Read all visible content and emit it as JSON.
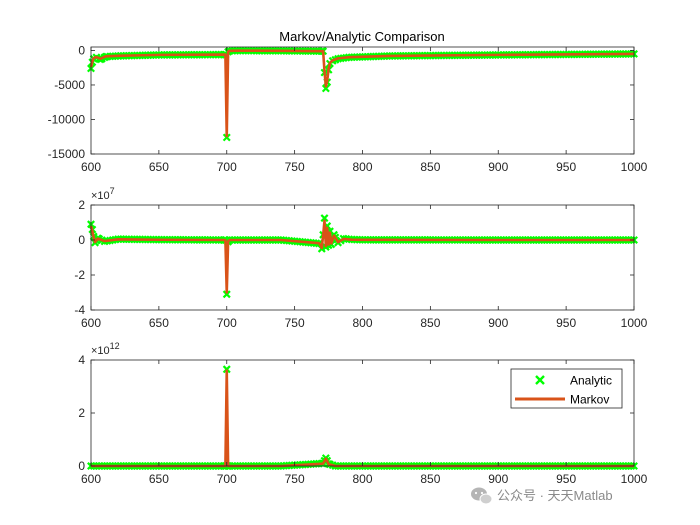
{
  "chart_data": [
    {
      "type": "line",
      "title": "Markov/Analytic Comparison",
      "xlabel": "",
      "ylabel": "",
      "xlim": [
        600,
        1000
      ],
      "ylim": [
        -15000,
        500
      ],
      "xticks": [
        "600",
        "650",
        "700",
        "750",
        "800",
        "850",
        "900",
        "950",
        "1000"
      ],
      "yticks": [
        "0",
        "-5000",
        "-10000",
        "-15000"
      ],
      "ytick_values": [
        0,
        -5000,
        -10000,
        -15000
      ],
      "y_exponent_label": "",
      "series": [
        {
          "name": "Analytic",
          "style": "markers",
          "color": "#00ff00",
          "x": [
            600,
            601,
            602,
            604,
            607,
            611,
            620,
            650,
            699,
            700,
            701,
            702,
            710,
            740,
            771,
            772,
            773,
            774,
            775,
            776,
            778,
            782,
            790,
            820,
            900,
            1000
          ],
          "values": [
            -2600,
            -1700,
            -1200,
            -1000,
            -1300,
            -900,
            -800,
            -650,
            -600,
            -12600,
            -200,
            -50,
            -30,
            -50,
            -100,
            -3200,
            -5500,
            -4600,
            -2800,
            -1900,
            -1500,
            -1200,
            -1000,
            -800,
            -650,
            -500
          ]
        },
        {
          "name": "Markov",
          "style": "line",
          "color": "#d95319",
          "x": [
            600,
            601,
            602,
            604,
            607,
            611,
            620,
            650,
            699,
            700,
            701,
            702,
            710,
            740,
            771,
            772,
            773,
            774,
            775,
            776,
            778,
            782,
            790,
            820,
            900,
            1000
          ],
          "values": [
            -2400,
            -1600,
            -1100,
            -950,
            -1200,
            -850,
            -780,
            -640,
            -600,
            -12400,
            -200,
            -50,
            -30,
            -50,
            -100,
            -3000,
            -5200,
            -4400,
            -2700,
            -1800,
            -1450,
            -1150,
            -980,
            -790,
            -640,
            -500
          ]
        }
      ]
    },
    {
      "type": "line",
      "title": "",
      "xlabel": "",
      "ylabel": "",
      "xlim": [
        600,
        1000
      ],
      "ylim": [
        -40000000,
        20000000
      ],
      "xticks": [
        "600",
        "650",
        "700",
        "750",
        "800",
        "850",
        "900",
        "950",
        "1000"
      ],
      "yticks": [
        "2",
        "0",
        "-2",
        "-4"
      ],
      "ytick_values": [
        20000000,
        0,
        -20000000,
        -40000000
      ],
      "y_exponent_label": "×10",
      "y_exponent_power": "7",
      "series": [
        {
          "name": "Analytic",
          "style": "markers",
          "color": "#00ff00",
          "x": [
            600,
            601,
            602,
            603,
            605,
            610,
            620,
            650,
            699,
            700,
            701,
            702,
            740,
            768,
            770,
            771,
            772,
            773,
            774,
            775,
            776,
            777,
            779,
            782,
            786,
            792,
            800,
            900,
            1000
          ],
          "values": [
            9000000,
            6000000,
            2000000,
            -1500000,
            1000000,
            -800000,
            500000,
            200000,
            0,
            -31000000,
            -1000000,
            0,
            0,
            -2000000,
            -5000000,
            3000000,
            12500000,
            -4000000,
            8000000,
            -3000000,
            5000000,
            -2500000,
            3000000,
            -1500000,
            800000,
            300000,
            100000,
            0,
            0
          ]
        },
        {
          "name": "Markov",
          "style": "line",
          "color": "#d95319",
          "x": [
            600,
            601,
            602,
            603,
            605,
            610,
            620,
            650,
            699,
            700,
            701,
            702,
            740,
            768,
            770,
            771,
            772,
            773,
            774,
            775,
            776,
            777,
            779,
            782,
            786,
            792,
            800,
            900,
            1000
          ],
          "values": [
            8000000,
            5000000,
            1500000,
            -1200000,
            800000,
            -600000,
            400000,
            150000,
            0,
            -30000000,
            -800000,
            0,
            0,
            -1800000,
            -4500000,
            2500000,
            11000000,
            -3500000,
            7000000,
            -2600000,
            4200000,
            -2000000,
            2500000,
            -1200000,
            600000,
            200000,
            100000,
            0,
            0
          ]
        }
      ]
    },
    {
      "type": "line",
      "title": "",
      "xlabel": "",
      "ylabel": "",
      "xlim": [
        600,
        1000
      ],
      "ylim": [
        0,
        4000000000000
      ],
      "xticks": [
        "600",
        "650",
        "700",
        "750",
        "800",
        "850",
        "900",
        "950",
        "1000"
      ],
      "yticks": [
        "4",
        "2",
        "0"
      ],
      "ytick_values": [
        4000000000000,
        2000000000000,
        0
      ],
      "y_exponent_label": "×10",
      "y_exponent_power": "12",
      "legend": {
        "position": "top-right",
        "entries": [
          "Analytic",
          "Markov"
        ]
      },
      "series": [
        {
          "name": "Analytic",
          "style": "markers",
          "color": "#00ff00",
          "x": [
            600,
            650,
            699,
            700,
            701,
            740,
            771,
            772,
            773,
            774,
            775,
            780,
            800,
            900,
            1000
          ],
          "values": [
            0,
            0,
            0,
            3650000000000,
            0,
            0,
            100000000000,
            200000000000,
            300000000000,
            200000000000,
            80000000000,
            0,
            0,
            0,
            0
          ]
        },
        {
          "name": "Markov",
          "style": "line",
          "color": "#d95319",
          "x": [
            600,
            650,
            699,
            700,
            701,
            740,
            771,
            772,
            773,
            774,
            775,
            780,
            800,
            900,
            1000
          ],
          "values": [
            0,
            0,
            0,
            3600000000000,
            0,
            0,
            90000000000,
            180000000000,
            280000000000,
            180000000000,
            70000000000,
            0,
            0,
            0,
            0
          ]
        }
      ]
    }
  ],
  "watermark": {
    "icon": "wechat-icon",
    "text": "公众号 · 天天Matlab"
  }
}
